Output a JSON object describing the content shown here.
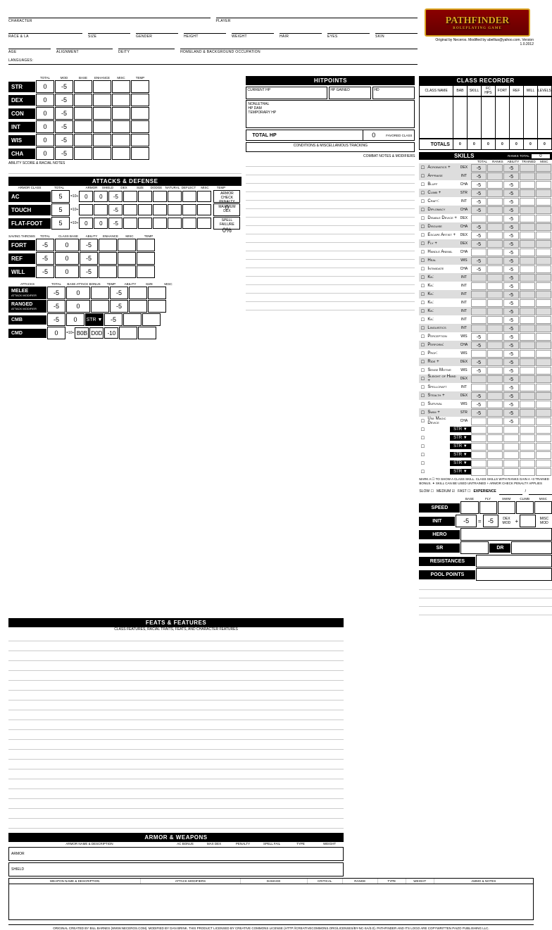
{
  "header": {
    "fields": [
      "CHARACTER",
      "PLAYER",
      "RACE & LA",
      "SIZE",
      "GENDER",
      "HEIGHT",
      "WEIGHT",
      "HAIR",
      "EYES",
      "SKIN",
      "AGE",
      "ALIGNMENT",
      "DEITY",
      "HOMELAND & BACKGROUND OCCUPATION",
      "LANGUAGES:"
    ],
    "logo_title": "PATHFINDER",
    "logo_sub": "ROLEPLAYING GAME",
    "credit": "Original by Neceros. Modified by abellius@yahoo.com. Version 1.0.2012"
  },
  "abilities": {
    "header": "ABILITY SCORE",
    "cols": [
      "TOTAL",
      "MOD",
      "BASE",
      "ENHANCE",
      "MISC",
      "TEMP"
    ],
    "rows": [
      {
        "name": "STR",
        "total": "0",
        "mod": "-5"
      },
      {
        "name": "DEX",
        "total": "0",
        "mod": "-5"
      },
      {
        "name": "CON",
        "total": "0",
        "mod": "-5"
      },
      {
        "name": "INT",
        "total": "0",
        "mod": "-5"
      },
      {
        "name": "WIS",
        "total": "0",
        "mod": "-5"
      },
      {
        "name": "CHA",
        "total": "0",
        "mod": "-5"
      }
    ],
    "note": "ABILITY SCORE & RACIAL NOTES"
  },
  "hp": {
    "title": "HITPOINTS",
    "current": "CURRENT HP",
    "gained": "HP GAINED",
    "hd": "HD",
    "nonlethal": "NONLETHAL",
    "hpdam": "HP DAM",
    "temp": "TEMPORARY HP",
    "total_lbl": "TOTAL HP",
    "total_val": "0",
    "favored": "FAVORED CLASS",
    "cond": "CONDITIONS & MISCELLANIOUS TRACKING"
  },
  "class_rec": {
    "title": "CLASS RECORDER",
    "cols": [
      "CLASS NAME",
      "BAB",
      "SKILL",
      "FC HPS",
      "FORT",
      "REF",
      "WILL",
      "LEVELS"
    ],
    "totals_lbl": "TOTALS",
    "totals": [
      "0",
      "0",
      "0",
      "0",
      "0",
      "0",
      "0"
    ]
  },
  "attacks": {
    "title": "ATTACKS & DEFENSE",
    "ac_cols": [
      "ARMOR CLASS",
      "TOTAL",
      "",
      "ARMOR",
      "SHIELD",
      "DEX",
      "SIZE",
      "DODGE",
      "NATURAL",
      "DEFLECT",
      "MISC",
      "TEMP"
    ],
    "ac_rows": [
      {
        "name": "AC",
        "total": "5",
        "base": "=10+",
        "armor": "0",
        "shield": "0",
        "dex": "-5"
      },
      {
        "name": "TOUCH",
        "total": "5",
        "base": "=10+",
        "dex": "-5"
      },
      {
        "name": "FLAT-FOOT",
        "total": "5",
        "base": "=10+",
        "armor": "0",
        "shield": "0",
        "dex": "-5"
      }
    ],
    "armor_check": {
      "lbl": "ARMOR CHECK PENALTY",
      "val": "0"
    },
    "max_dex": {
      "lbl": "MAXIMUM DEX",
      "val": "--"
    },
    "spell_fail": {
      "lbl": "SPELL FAILURE",
      "val": "0%"
    },
    "combat_notes": "COMBAT NOTES & MODIFIERS",
    "save_cols": [
      "SAVING THROWS",
      "TOTAL",
      "CLASS BASE",
      "ABILITY",
      "ENHANCE",
      "MISC",
      "TEMP"
    ],
    "saves": [
      {
        "name": "FORT",
        "total": "-5",
        "base": "0",
        "abil": "-5"
      },
      {
        "name": "REF",
        "total": "-5",
        "base": "0",
        "abil": "-5"
      },
      {
        "name": "WILL",
        "total": "-5",
        "base": "0",
        "abil": "-5"
      }
    ],
    "atk_cols": [
      "ATTACKS",
      "TOTAL",
      "BASE ATTACK BONUS",
      "TEMP",
      "ABILITY",
      "SIZE",
      "MISC"
    ],
    "atk_rows": [
      {
        "name": "MELEE",
        "sub": "ATTACK MODIFIER",
        "total": "-5",
        "bab": "0",
        "abil": "-5"
      },
      {
        "name": "RANGED",
        "sub": "ATTACK MODIFIER",
        "total": "-5",
        "bab": "0",
        "abil": "-5"
      },
      {
        "name": "CMB",
        "total": "-5",
        "bab": "0",
        "sel": "STR",
        "abil": "-5"
      },
      {
        "name": "CMD",
        "total": "0",
        "base": "=10+",
        "bab": "B0B",
        "d": "D0D",
        "s": "-10"
      }
    ]
  },
  "feats": {
    "title": "FEATS & FEATURES",
    "sub": "CLASS FEATURES, RACIAL TRAITS, FEATS, AND CHARACTER FEATURES",
    "lines": 20
  },
  "armor_wpn": {
    "title": "ARMOR & WEAPONS",
    "armor_cols": [
      "ARMOR NAME & DESCRIPTION",
      "AC BONUS",
      "MAX DEX",
      "PENALTY",
      "SPELL FAIL",
      "TYPE",
      "WEIGHT"
    ],
    "armor_lbl": "ARMOR",
    "shield_lbl": "SHIELD",
    "weapon_cols": [
      "WEAPON NAME & DESCRIPTION",
      "ATTACK MODIFIERS",
      "DAMAGE",
      "CRITICAL",
      "RANGE",
      "TYPE",
      "WEIGHT",
      "AMMO & NOTES"
    ]
  },
  "skills": {
    "title": "SKILLS",
    "ranks_lbl": "RANKS TOTAL",
    "ranks_total": "0",
    "cols": [
      "TOTAL",
      "RANKS",
      "ABILITY",
      "TRAINED",
      "MISC"
    ],
    "list": [
      {
        "n": "Acrobatics +",
        "a": "dex",
        "t": "-5",
        "ab": "-5",
        "s": 1
      },
      {
        "n": "Appraise",
        "a": "int",
        "t": "-5",
        "ab": "-5",
        "s": 1
      },
      {
        "n": "Bluff",
        "a": "cha",
        "t": "-5",
        "ab": "-5",
        "s": 0
      },
      {
        "n": "Climb +",
        "a": "str",
        "t": "-5",
        "ab": "-5",
        "s": 1
      },
      {
        "n": "Craft:",
        "a": "int",
        "t": "-5",
        "ab": "-5",
        "s": 0
      },
      {
        "n": "Diplomacy",
        "a": "cha",
        "t": "-5",
        "ab": "-5",
        "s": 1
      },
      {
        "n": "Disable Device +",
        "a": "dex",
        "t": "",
        "ab": "-5",
        "s": 0
      },
      {
        "n": "Disguise",
        "a": "cha",
        "t": "-5",
        "ab": "-5",
        "s": 1
      },
      {
        "n": "Escape Artist +",
        "a": "dex",
        "t": "-5",
        "ab": "-5",
        "s": 0
      },
      {
        "n": "Fly +",
        "a": "dex",
        "t": "-5",
        "ab": "-5",
        "s": 1
      },
      {
        "n": "Handle Animal",
        "a": "cha",
        "t": "",
        "ab": "-5",
        "s": 0
      },
      {
        "n": "Heal",
        "a": "wis",
        "t": "-5",
        "ab": "-5",
        "s": 1
      },
      {
        "n": "Intimidate",
        "a": "cha",
        "t": "-5",
        "ab": "-5",
        "s": 0
      },
      {
        "n": "Kn:",
        "a": "int",
        "t": "",
        "ab": "-5",
        "s": 1
      },
      {
        "n": "Kn:",
        "a": "int",
        "t": "",
        "ab": "-5",
        "s": 0
      },
      {
        "n": "Kn:",
        "a": "int",
        "t": "",
        "ab": "-5",
        "s": 1
      },
      {
        "n": "Kn:",
        "a": "int",
        "t": "",
        "ab": "-5",
        "s": 0
      },
      {
        "n": "Kn:",
        "a": "int",
        "t": "",
        "ab": "-5",
        "s": 1
      },
      {
        "n": "Kn:",
        "a": "int",
        "t": "",
        "ab": "-5",
        "s": 0
      },
      {
        "n": "Linguistics",
        "a": "int",
        "t": "",
        "ab": "-5",
        "s": 1
      },
      {
        "n": "Perception",
        "a": "wis",
        "t": "-5",
        "ab": "-5",
        "s": 0
      },
      {
        "n": "Perform:",
        "a": "cha",
        "t": "-5",
        "ab": "-5",
        "s": 1
      },
      {
        "n": "Prof:",
        "a": "wis",
        "t": "",
        "ab": "-5",
        "s": 0
      },
      {
        "n": "Ride +",
        "a": "dex",
        "t": "-5",
        "ab": "-5",
        "s": 1
      },
      {
        "n": "Sense Motive",
        "a": "wis",
        "t": "-5",
        "ab": "-5",
        "s": 0
      },
      {
        "n": "Sleight of Hand +",
        "a": "dex",
        "t": "",
        "ab": "-5",
        "s": 1
      },
      {
        "n": "Spellcraft",
        "a": "int",
        "t": "",
        "ab": "-5",
        "s": 0
      },
      {
        "n": "Stealth +",
        "a": "dex",
        "t": "-5",
        "ab": "-5",
        "s": 1
      },
      {
        "n": "Survival",
        "a": "wis",
        "t": "-5",
        "ab": "-5",
        "s": 0
      },
      {
        "n": "Swim +",
        "a": "str",
        "t": "-5",
        "ab": "-5",
        "s": 1
      },
      {
        "n": "Use Magic Device",
        "a": "cha",
        "t": "",
        "ab": "-5",
        "s": 0
      }
    ],
    "custom_rows": 6,
    "note": "MARK A ☐ TO SHOW A CLASS SKILL. CLASS SKILLS WITH RANKS GAIN A +3 TRAINED BONUS. ✦ SKILL CAN BE USED UNTRAINED  + ARMOR CHECK PENALTY APPLIES"
  },
  "experience": {
    "lbl": "EXPERIENCE",
    "slow": "SLOW ☐",
    "med": "MEDIUM ☑",
    "fast": "FAST ☐"
  },
  "speed": {
    "cols": [
      "BASE",
      "FLY",
      "SWIM",
      "CLIMB",
      "MISC"
    ],
    "speed_lbl": "SPEED",
    "init_lbl": "INIT",
    "init_val": "-5",
    "init_dex": "-5",
    "init_dex_lbl": "DEX MOD",
    "init_misc_lbl": "MISC MOD",
    "hero_lbl": "HERO",
    "sr_lbl": "SR",
    "dr_lbl": "DR",
    "resist_lbl": "RESISTANCES",
    "pool_lbl": "POOL POINTS"
  },
  "footer": "ORIGINAL CREATED BY BILL BARNES (WWW.NECEROS.COM). MODIFIED BY DAN BRINK. THIS PRODUCT LICENSED BY CREATIVE COMMONS LICENSE (HTTP://CREATIVECOMMONS.ORG/LICENSES/BY-NC-SA/3.0). PATHFINDER AND ITS LOGO ARE COPYWRITTEN PAIZO PUBLISHING LLC."
}
